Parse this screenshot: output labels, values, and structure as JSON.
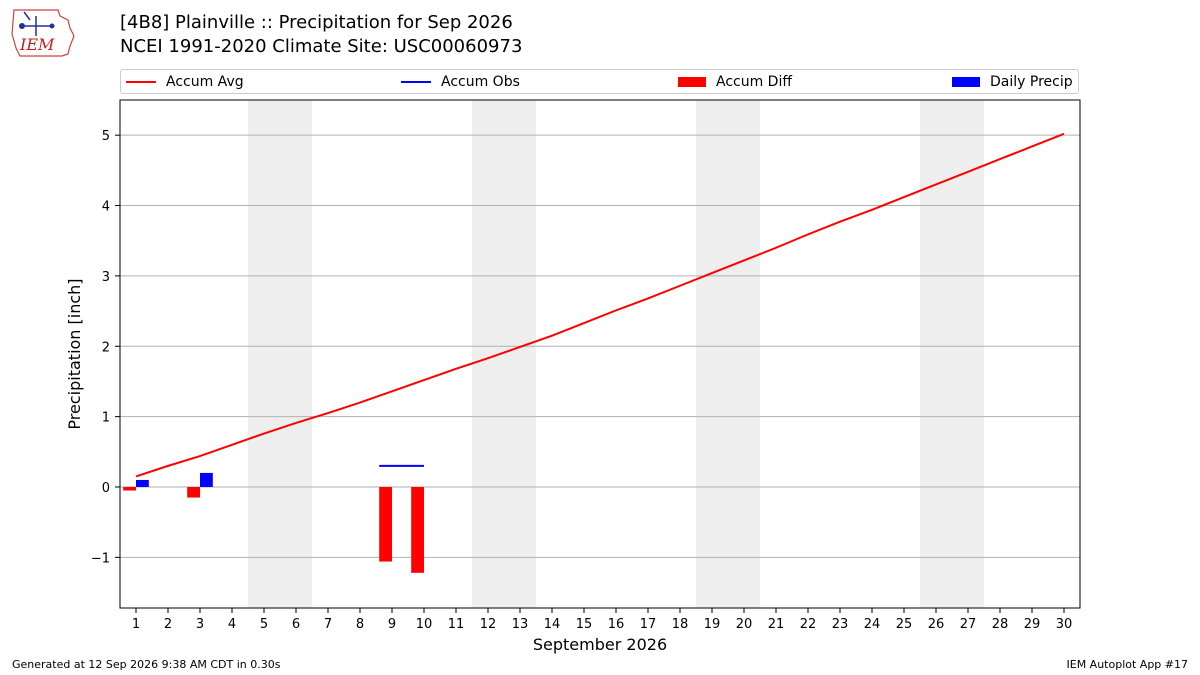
{
  "header": {
    "logo_text": "IEM",
    "title_line1": "[4B8] Plainville :: Precipitation for Sep 2026",
    "title_line2": "NCEI 1991-2020 Climate Site: USC00060973"
  },
  "legend": {
    "items": [
      {
        "label": "Accum Avg",
        "kind": "line",
        "color": "#ff0000"
      },
      {
        "label": "Accum Obs",
        "kind": "line",
        "color": "#0000ff"
      },
      {
        "label": "Accum Diff",
        "kind": "box",
        "color": "#ff0000"
      },
      {
        "label": "Daily Precip",
        "kind": "box",
        "color": "#0000ff"
      }
    ]
  },
  "footer": {
    "generated": "Generated at 12 Sep 2026 9:38 AM CDT in 0.30s",
    "app": "IEM Autoplot App #17"
  },
  "chart_data": {
    "type": "bar",
    "title": "[4B8] Plainville :: Precipitation for Sep 2026",
    "subtitle": "NCEI 1991-2020 Climate Site: USC00060973",
    "xlabel": "September 2026",
    "ylabel": "Precipitation [inch]",
    "x": [
      1,
      2,
      3,
      4,
      5,
      6,
      7,
      8,
      9,
      10,
      11,
      12,
      13,
      14,
      15,
      16,
      17,
      18,
      19,
      20,
      21,
      22,
      23,
      24,
      25,
      26,
      27,
      28,
      29,
      30
    ],
    "xlim": [
      0.5,
      30.5
    ],
    "ylim": [
      -1.72,
      5.5
    ],
    "yticks": [
      -1,
      0,
      1,
      2,
      3,
      4,
      5
    ],
    "ytick_labels": [
      "−1",
      "0",
      "1",
      "2",
      "3",
      "4",
      "5"
    ],
    "grid": "y",
    "legend_position": "top",
    "weekend_shading": [
      [
        4.5,
        6.5
      ],
      [
        11.5,
        13.5
      ],
      [
        18.5,
        20.5
      ],
      [
        25.5,
        27.5
      ]
    ],
    "series": [
      {
        "name": "Accum Avg",
        "type": "line",
        "color": "#ff0000",
        "x": [
          1,
          2,
          3,
          4,
          5,
          6,
          7,
          8,
          9,
          10,
          11,
          12,
          13,
          14,
          15,
          16,
          17,
          18,
          19,
          20,
          21,
          22,
          23,
          24,
          25,
          26,
          27,
          28,
          29,
          30
        ],
        "values": [
          0.15,
          0.3,
          0.44,
          0.6,
          0.76,
          0.91,
          1.05,
          1.2,
          1.36,
          1.52,
          1.68,
          1.83,
          1.99,
          2.15,
          2.33,
          2.51,
          2.68,
          2.86,
          3.04,
          3.22,
          3.4,
          3.59,
          3.77,
          3.94,
          4.12,
          4.3,
          4.48,
          4.66,
          4.84,
          5.02
        ]
      },
      {
        "name": "Accum Obs",
        "type": "line",
        "color": "#0000ff",
        "x": [
          9,
          10
        ],
        "values": [
          0.3,
          0.3
        ]
      },
      {
        "name": "Accum Diff",
        "type": "bar",
        "color": "#ff0000",
        "x": [
          1,
          3,
          9,
          10
        ],
        "values": [
          -0.05,
          -0.15,
          -1.06,
          -1.22
        ]
      },
      {
        "name": "Daily Precip",
        "type": "bar",
        "color": "#0000ff",
        "x": [
          1,
          3
        ],
        "values": [
          0.1,
          0.2
        ]
      }
    ]
  }
}
